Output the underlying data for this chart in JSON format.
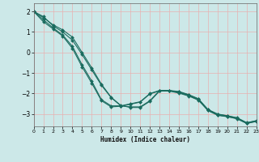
{
  "xlabel": "Humidex (Indice chaleur)",
  "ylabel": "",
  "background_color": "#cce8e8",
  "line_color": "#1a6b5e",
  "grid_color": "#e8b0b0",
  "xlim": [
    0,
    23
  ],
  "ylim": [
    -3.6,
    2.4
  ],
  "yticks": [
    -3,
    -2,
    -1,
    0,
    1,
    2
  ],
  "xticks": [
    0,
    1,
    2,
    3,
    4,
    5,
    6,
    7,
    8,
    9,
    10,
    11,
    12,
    13,
    14,
    15,
    16,
    17,
    18,
    19,
    20,
    21,
    22,
    23
  ],
  "series": [
    [
      2.0,
      1.75,
      1.3,
      1.0,
      0.6,
      -0.1,
      -0.85,
      -1.6,
      -2.2,
      -2.6,
      -2.65,
      -2.65,
      -2.35,
      -1.85,
      -1.85,
      -1.95,
      -2.1,
      -2.3,
      -2.82,
      -3.05,
      -3.12,
      -3.22,
      -3.45,
      -3.35
    ],
    [
      2.0,
      1.7,
      1.35,
      1.1,
      0.75,
      0.0,
      -0.75,
      -1.55,
      -2.18,
      -2.58,
      -2.68,
      -2.68,
      -2.38,
      -1.88,
      -1.88,
      -1.98,
      -2.12,
      -2.32,
      -2.83,
      -3.06,
      -3.13,
      -3.23,
      -3.46,
      -3.36
    ],
    [
      2.0,
      1.6,
      1.2,
      0.85,
      0.3,
      -0.6,
      -1.4,
      -2.3,
      -2.6,
      -2.6,
      -2.5,
      -2.4,
      -2.0,
      -1.85,
      -1.85,
      -1.9,
      -2.05,
      -2.25,
      -2.78,
      -3.0,
      -3.08,
      -3.18,
      -3.42,
      -3.32
    ],
    [
      2.0,
      1.5,
      1.15,
      0.8,
      0.2,
      -0.7,
      -1.5,
      -2.35,
      -2.65,
      -2.62,
      -2.52,
      -2.42,
      -2.02,
      -1.87,
      -1.87,
      -1.92,
      -2.07,
      -2.27,
      -2.79,
      -3.01,
      -3.09,
      -3.19,
      -3.43,
      -3.33
    ]
  ]
}
